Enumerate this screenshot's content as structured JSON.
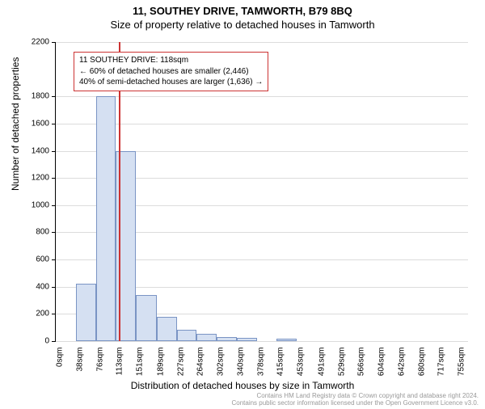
{
  "title_main": "11, SOUTHEY DRIVE, TAMWORTH, B79 8BQ",
  "title_sub": "Size of property relative to detached houses in Tamworth",
  "y_axis_label": "Number of detached properties",
  "x_axis_label": "Distribution of detached houses by size in Tamworth",
  "chart": {
    "type": "histogram",
    "background_color": "#ffffff",
    "grid_color": "#dcdcdc",
    "axis_color": "#000000",
    "bar_fill": "#d5e0f2",
    "bar_border": "#7a94c4",
    "ylim": [
      0,
      2200
    ],
    "yticks": [
      0,
      200,
      400,
      600,
      800,
      1000,
      1200,
      1400,
      1600,
      1800,
      2200
    ],
    "x_range": [
      0,
      774
    ],
    "xticks": [
      {
        "pos": 0,
        "label": "0sqm"
      },
      {
        "pos": 38,
        "label": "38sqm"
      },
      {
        "pos": 76,
        "label": "76sqm"
      },
      {
        "pos": 113,
        "label": "113sqm"
      },
      {
        "pos": 151,
        "label": "151sqm"
      },
      {
        "pos": 189,
        "label": "189sqm"
      },
      {
        "pos": 227,
        "label": "227sqm"
      },
      {
        "pos": 264,
        "label": "264sqm"
      },
      {
        "pos": 302,
        "label": "302sqm"
      },
      {
        "pos": 340,
        "label": "340sqm"
      },
      {
        "pos": 378,
        "label": "378sqm"
      },
      {
        "pos": 415,
        "label": "415sqm"
      },
      {
        "pos": 453,
        "label": "453sqm"
      },
      {
        "pos": 491,
        "label": "491sqm"
      },
      {
        "pos": 529,
        "label": "529sqm"
      },
      {
        "pos": 566,
        "label": "566sqm"
      },
      {
        "pos": 604,
        "label": "604sqm"
      },
      {
        "pos": 642,
        "label": "642sqm"
      },
      {
        "pos": 680,
        "label": "680sqm"
      },
      {
        "pos": 717,
        "label": "717sqm"
      },
      {
        "pos": 755,
        "label": "755sqm"
      }
    ],
    "bars": [
      {
        "x0": 38,
        "x1": 76,
        "value": 420
      },
      {
        "x0": 76,
        "x1": 113,
        "value": 1800
      },
      {
        "x0": 113,
        "x1": 151,
        "value": 1400
      },
      {
        "x0": 151,
        "x1": 189,
        "value": 340
      },
      {
        "x0": 189,
        "x1": 227,
        "value": 180
      },
      {
        "x0": 227,
        "x1": 264,
        "value": 85
      },
      {
        "x0": 264,
        "x1": 302,
        "value": 55
      },
      {
        "x0": 302,
        "x1": 340,
        "value": 30
      },
      {
        "x0": 340,
        "x1": 378,
        "value": 25
      },
      {
        "x0": 415,
        "x1": 453,
        "value": 15
      }
    ],
    "vline": {
      "x": 118,
      "color": "#cc3333"
    },
    "annotation": {
      "border_color": "#cc3333",
      "lines": [
        "11 SOUTHEY DRIVE: 118sqm",
        "← 60% of detached houses are smaller (2,446)",
        "40% of semi-detached houses are larger (1,636) →"
      ]
    }
  },
  "footer": {
    "line1": "Contains HM Land Registry data © Crown copyright and database right 2024.",
    "line2": "Contains public sector information licensed under the Open Government Licence v3.0."
  }
}
